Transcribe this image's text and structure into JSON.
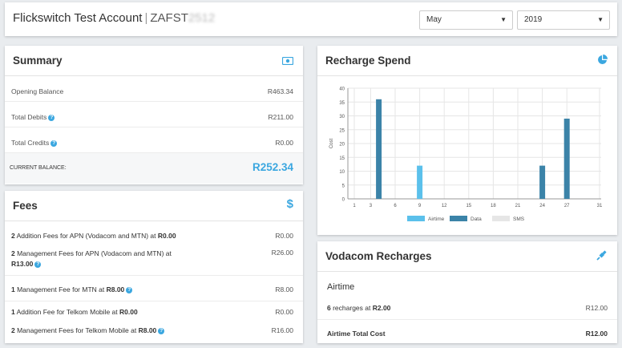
{
  "header": {
    "account_name": "Flickswitch Test Account",
    "separator": "|",
    "account_code": "ZAFST",
    "account_code_blurred": "2512",
    "month": "May",
    "year": "2019"
  },
  "summary": {
    "title": "Summary",
    "icon": "money-icon",
    "rows": [
      {
        "label": "Opening Balance",
        "value": "R463.34"
      },
      {
        "label": "Total Debits",
        "value": "R211.00"
      },
      {
        "label": "Total Credits",
        "value": "R0.00"
      }
    ],
    "current_label": "CURRENT BALANCE:",
    "current_value": "R252.34"
  },
  "fees": {
    "title": "Fees",
    "icon": "dollar-icon",
    "rows": [
      {
        "count": "2",
        "text": " Addition Fees for APN (Vodacom and MTN) at ",
        "price": "R0.00",
        "value": "R0.00"
      },
      {
        "count": "2",
        "text": " Management Fees for APN (Vodacom and MTN) at",
        "price": "R13.00",
        "value": "R26.00"
      },
      {
        "count": "1",
        "text": " Management Fee for MTN at ",
        "price": "R8.00",
        "value": "R8.00"
      },
      {
        "count": "1",
        "text": " Addition Fee for Telkom Mobile at ",
        "price": "R0.00",
        "value": "R0.00"
      },
      {
        "count": "2",
        "text": " Management Fees for Telkom Mobile at ",
        "price": "R8.00",
        "value": "R16.00"
      }
    ]
  },
  "recharge_spend": {
    "title": "Recharge Spend",
    "icon": "pie-chart-icon"
  },
  "chart_data": {
    "type": "bar",
    "ylabel": "Cost",
    "xlabel": "",
    "ylim": [
      0,
      40
    ],
    "yticks": [
      "0",
      "5",
      "10",
      "15",
      "20",
      "25",
      "30",
      "35",
      "40"
    ],
    "xticks": [
      "1",
      "3",
      "6",
      "9",
      "12",
      "15",
      "18",
      "21",
      "24",
      "27",
      "31"
    ],
    "xlim": [
      1,
      31
    ],
    "grid": true,
    "legend_position": "bottom",
    "series": [
      {
        "name": "Airtime",
        "color": "#5bc0eb",
        "points": [
          {
            "x": 9,
            "y": 12
          }
        ]
      },
      {
        "name": "Data",
        "color": "#3b83a8",
        "points": [
          {
            "x": 4,
            "y": 36
          },
          {
            "x": 24,
            "y": 12
          },
          {
            "x": 27,
            "y": 29
          }
        ]
      },
      {
        "name": "SMS",
        "color": "#e6e6e6",
        "points": []
      }
    ]
  },
  "vodacom": {
    "title": "Vodacom Recharges",
    "icon": "plug-icon",
    "section": "Airtime",
    "recharges_count": "6",
    "recharges_text": " recharges at ",
    "recharges_price": "R2.00",
    "recharges_value": "R12.00",
    "total_label": "Airtime Total Cost",
    "total_value": "R12.00"
  }
}
